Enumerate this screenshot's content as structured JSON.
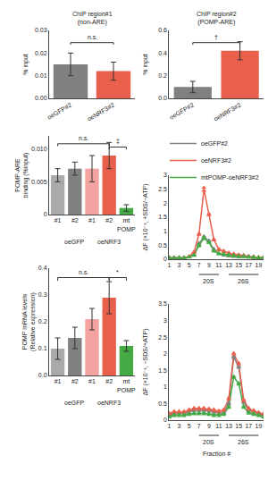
{
  "chart_data": [
    {
      "type": "bar",
      "title": "ChIP region#1\n(non-ARE)",
      "categories": [
        "oeGFP#2",
        "oeNRF3#2"
      ],
      "values": [
        0.015,
        0.012
      ],
      "errors": [
        0.005,
        0.004
      ],
      "colors": [
        "#808080",
        "#e8604c"
      ],
      "ylabel": "% input",
      "ylim": [
        0,
        0.03
      ],
      "yticks": [
        {
          "value": 0,
          "label": "0.00"
        },
        0.01,
        0.02,
        0.03
      ],
      "grid": false,
      "annotations": [
        {
          "text": "n.s.",
          "bracket": [
            0,
            1
          ],
          "y": 0.0246
        }
      ]
    },
    {
      "type": "bar",
      "title": "ChIP region#2\n(POMP-ARE)",
      "categories": [
        "oeGFP#2",
        "oeNRF3#2"
      ],
      "values": [
        0.1,
        0.42
      ],
      "errors": [
        0.05,
        0.08
      ],
      "colors": [
        "#808080",
        "#e8604c"
      ],
      "ylabel": "% input",
      "ylim": [
        0,
        0.6
      ],
      "yticks": [
        {
          "value": 0,
          "label": "0.0"
        },
        0.2,
        0.4,
        0.6
      ],
      "grid": false,
      "annotations": [
        {
          "text": "†",
          "bracket": [
            0,
            1
          ],
          "y": 0.492
        }
      ]
    },
    {
      "type": "bar",
      "categories": [
        "#1",
        "#2",
        "#1",
        "#2",
        "mt\nPOMP"
      ],
      "values": [
        0.006,
        0.007,
        0.007,
        0.009,
        0.001
      ],
      "errors": [
        0.001,
        0.001,
        0.002,
        0.002,
        0.0005
      ],
      "colors": [
        "#aaaaaa",
        "#808080",
        "#f4a4a0",
        "#e8604c",
        "#44aa44"
      ],
      "ylabel": "POMP-ARE\nbinding (%input)",
      "ylim": [
        0,
        0.012
      ],
      "yticks": [
        0,
        0.005,
        {
          "value": 0.01,
          "label": "0.010"
        }
      ],
      "grid": false,
      "annotations": [
        {
          "text": "oeGFP",
          "x": 1
        },
        {
          "text": "oeNRF3",
          "x": 3
        },
        {
          "text": "n.s.",
          "bracket": [
            0,
            3
          ],
          "y": 0.0108
        },
        {
          "text": "‡",
          "bracket": [
            3,
            4
          ],
          "y": 0.0103
        }
      ]
    },
    {
      "type": "bar",
      "categories": [
        "#1",
        "#2",
        "#1",
        "#2",
        "mt\nPOMP"
      ],
      "values": [
        0.1,
        0.14,
        0.21,
        0.29,
        0.11
      ],
      "errors": [
        0.04,
        0.04,
        0.04,
        0.06,
        0.02
      ],
      "colors": [
        "#aaaaaa",
        "#808080",
        "#f4a4a0",
        "#e8604c",
        "#44aa44"
      ],
      "ylabel": "POMP mRNA levels\n(Relative expression)",
      "ylim": [
        0,
        0.4
      ],
      "yticks": [
        {
          "value": 0,
          "label": "0.0"
        },
        0.1,
        0.2,
        0.3,
        0.4
      ],
      "grid": false,
      "annotations": [
        {
          "text": "oeGFP",
          "x": 1
        },
        {
          "text": "oeNRF3",
          "x": 3
        },
        {
          "text": "n.s.",
          "bracket": [
            0,
            3
          ],
          "y": 0.365
        },
        {
          "text": "*",
          "bracket": [
            3,
            4
          ],
          "y": 0.365
        }
      ]
    },
    {
      "type": "line",
      "x": [
        1,
        2,
        3,
        4,
        5,
        6,
        7,
        8,
        9,
        10,
        11,
        12,
        13,
        14,
        15,
        16,
        17,
        18,
        19,
        20
      ],
      "series": [
        {
          "name": "oeGFP#2",
          "type": "line",
          "color": "#808080",
          "values": [
            0.05,
            0.05,
            0.05,
            0.05,
            0.08,
            0.15,
            0.55,
            0.8,
            0.65,
            0.35,
            0.2,
            0.15,
            0.12,
            0.1,
            0.1,
            0.1,
            0.08,
            0.07,
            0.05,
            0.05
          ]
        },
        {
          "name": "oeNRF3#2",
          "type": "line",
          "color": "#e8604c",
          "values": [
            0.05,
            0.05,
            0.05,
            0.05,
            0.1,
            0.25,
            0.9,
            2.5,
            1.6,
            0.7,
            0.35,
            0.28,
            0.22,
            0.18,
            0.15,
            0.13,
            0.1,
            0.08,
            0.06,
            0.05
          ]
        },
        {
          "name": "mtPOMP-oeNRF3#2",
          "type": "line",
          "color": "#44aa44",
          "values": [
            0.05,
            0.05,
            0.05,
            0.05,
            0.08,
            0.15,
            0.5,
            0.75,
            0.6,
            0.3,
            0.2,
            0.18,
            0.15,
            0.12,
            0.1,
            0.1,
            0.08,
            0.07,
            0.05,
            0.05
          ]
        },
        {
          "type": "scatter",
          "marker": "triangle-up",
          "color": "#808080",
          "values": [
            0.07,
            0.04,
            0.06,
            0.04,
            0.09,
            0.14,
            0.52,
            0.82,
            0.63,
            0.37,
            0.21,
            0.16,
            0.13,
            0.11,
            0.11,
            0.11,
            0.09,
            0.08,
            0.06,
            0.04
          ]
        },
        {
          "type": "scatter",
          "marker": "triangle-up",
          "color": "#808080",
          "values": [
            0.03,
            0.06,
            0.04,
            0.06,
            0.07,
            0.16,
            0.58,
            0.78,
            0.67,
            0.33,
            0.19,
            0.14,
            0.11,
            0.09,
            0.09,
            0.09,
            0.07,
            0.06,
            0.04,
            0.06
          ]
        },
        {
          "type": "scatter",
          "marker": "triangle-up",
          "color": "#e8604c",
          "values": [
            0.03,
            0.04,
            0.06,
            0.04,
            0.09,
            0.23,
            0.88,
            2.55,
            1.58,
            0.72,
            0.33,
            0.26,
            0.2,
            0.16,
            0.13,
            0.11,
            0.08,
            0.06,
            0.04,
            0.03
          ]
        },
        {
          "type": "scatter",
          "marker": "triangle-up",
          "color": "#e8604c",
          "values": [
            0.07,
            0.06,
            0.04,
            0.06,
            0.11,
            0.27,
            0.92,
            2.45,
            1.62,
            0.68,
            0.37,
            0.3,
            0.24,
            0.2,
            0.17,
            0.15,
            0.12,
            0.1,
            0.08,
            0.07
          ]
        },
        {
          "type": "scatter",
          "marker": "triangle-up",
          "color": "#44aa44",
          "values": [
            0.03,
            0.06,
            0.06,
            0.06,
            0.09,
            0.17,
            0.53,
            0.77,
            0.62,
            0.32,
            0.22,
            0.2,
            0.17,
            0.14,
            0.12,
            0.12,
            0.1,
            0.09,
            0.07,
            0.07
          ]
        },
        {
          "type": "scatter",
          "marker": "triangle-up",
          "color": "#44aa44",
          "values": [
            0.07,
            0.04,
            0.04,
            0.04,
            0.07,
            0.13,
            0.47,
            0.73,
            0.58,
            0.28,
            0.18,
            0.16,
            0.13,
            0.1,
            0.08,
            0.08,
            0.06,
            0.05,
            0.03,
            0.03
          ]
        }
      ],
      "ylabel": "ΔF (×10⁻³, +SDS/−ATP)",
      "xlim": [
        1,
        20
      ],
      "xticks": [
        1,
        3,
        5,
        7,
        9,
        11,
        13,
        15,
        17,
        19
      ],
      "ylim": [
        0,
        3.0
      ],
      "yticks": [
        0,
        0.5,
        1,
        1.5,
        2,
        2.5,
        3
      ],
      "grid": false,
      "legend": "upper right",
      "annotations": [
        {
          "text": "20S",
          "bracket": [
            7,
            11
          ]
        },
        {
          "text": "26S",
          "bracket": [
            13,
            19
          ]
        }
      ]
    },
    {
      "type": "line",
      "x": [
        1,
        2,
        3,
        4,
        5,
        6,
        7,
        8,
        9,
        10,
        11,
        12,
        13,
        14,
        15,
        16,
        17,
        18,
        19,
        20
      ],
      "series": [
        {
          "type": "line",
          "color": "#808080",
          "values": [
            0.15,
            0.2,
            0.2,
            0.2,
            0.25,
            0.3,
            0.3,
            0.3,
            0.28,
            0.25,
            0.22,
            0.22,
            0.5,
            1.9,
            1.6,
            0.55,
            0.3,
            0.25,
            0.2,
            0.15
          ]
        },
        {
          "type": "line",
          "color": "#e8604c",
          "values": [
            0.2,
            0.25,
            0.25,
            0.25,
            0.3,
            0.35,
            0.35,
            0.35,
            0.33,
            0.3,
            0.27,
            0.3,
            0.65,
            2.0,
            1.7,
            0.6,
            0.35,
            0.28,
            0.22,
            0.18
          ]
        },
        {
          "type": "line",
          "color": "#44aa44",
          "values": [
            0.1,
            0.15,
            0.15,
            0.15,
            0.18,
            0.2,
            0.2,
            0.2,
            0.18,
            0.15,
            0.15,
            0.18,
            0.4,
            1.3,
            1.1,
            0.4,
            0.22,
            0.18,
            0.15,
            0.1
          ]
        },
        {
          "type": "scatter",
          "marker": "triangle-up",
          "color": "#808080",
          "values": [
            0.17,
            0.22,
            0.22,
            0.22,
            0.27,
            0.32,
            0.32,
            0.32,
            0.3,
            0.27,
            0.24,
            0.24,
            0.52,
            1.92,
            1.62,
            0.57,
            0.32,
            0.27,
            0.22,
            0.17
          ]
        },
        {
          "type": "scatter",
          "marker": "triangle-up",
          "color": "#808080",
          "values": [
            0.13,
            0.18,
            0.18,
            0.18,
            0.23,
            0.28,
            0.28,
            0.28,
            0.26,
            0.23,
            0.2,
            0.2,
            0.48,
            1.88,
            1.58,
            0.53,
            0.28,
            0.23,
            0.18,
            0.13
          ]
        },
        {
          "type": "scatter",
          "marker": "triangle-up",
          "color": "#e8604c",
          "values": [
            0.18,
            0.23,
            0.23,
            0.23,
            0.28,
            0.33,
            0.33,
            0.33,
            0.31,
            0.28,
            0.25,
            0.28,
            0.63,
            1.98,
            1.68,
            0.58,
            0.33,
            0.26,
            0.2,
            0.16
          ]
        },
        {
          "type": "scatter",
          "marker": "triangle-up",
          "color": "#e8604c",
          "values": [
            0.22,
            0.27,
            0.27,
            0.27,
            0.32,
            0.37,
            0.37,
            0.37,
            0.35,
            0.32,
            0.29,
            0.32,
            0.67,
            2.02,
            1.72,
            0.62,
            0.37,
            0.3,
            0.24,
            0.2
          ]
        },
        {
          "type": "scatter",
          "marker": "triangle-up",
          "color": "#44aa44",
          "values": [
            0.08,
            0.13,
            0.13,
            0.13,
            0.16,
            0.18,
            0.18,
            0.18,
            0.16,
            0.13,
            0.13,
            0.16,
            0.38,
            1.28,
            1.08,
            0.38,
            0.2,
            0.16,
            0.13,
            0.08
          ]
        },
        {
          "type": "scatter",
          "marker": "triangle-up",
          "color": "#44aa44",
          "values": [
            0.12,
            0.17,
            0.17,
            0.17,
            0.2,
            0.22,
            0.22,
            0.22,
            0.2,
            0.17,
            0.17,
            0.2,
            0.42,
            1.32,
            1.12,
            0.42,
            0.24,
            0.2,
            0.17,
            0.12
          ]
        }
      ],
      "xlabel": "Fraction #",
      "ylabel": "ΔF (×10⁻³, −SDS/+ATP)",
      "xlim": [
        1,
        20
      ],
      "xticks": [
        1,
        3,
        5,
        7,
        9,
        11,
        13,
        15,
        17,
        19
      ],
      "ylim": [
        0,
        3.5
      ],
      "yticks": [
        0,
        0.5,
        1,
        1.5,
        2,
        2.5,
        3,
        3.5
      ],
      "grid": false,
      "annotations": [
        {
          "text": "20S",
          "bracket": [
            7,
            11
          ]
        },
        {
          "text": "26S",
          "bracket": [
            13,
            19
          ]
        }
      ]
    }
  ]
}
